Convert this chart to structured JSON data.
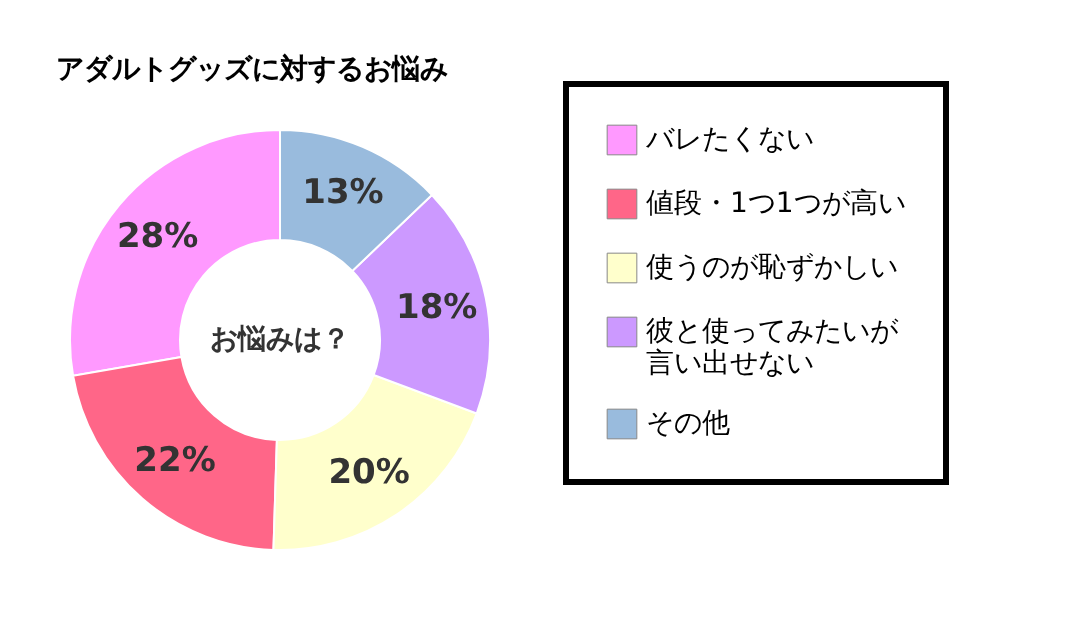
{
  "chart_data": {
    "type": "donut",
    "title": "アダルトグッズに対するお悩み",
    "categories": [
      "バレたくない",
      "値段・1つ1つが高い",
      "使うのが恥ずかしい",
      "彼と使ってみたいが言い出せない",
      "その他"
    ],
    "values": [
      28,
      22,
      20,
      18,
      13
    ],
    "colors": [
      "#ff99ff",
      "#ff6688",
      "#ffffcc",
      "#cc99ff",
      "#99bbdd"
    ],
    "value_labels": [
      "28%",
      "22%",
      "20%",
      "18%",
      "13%"
    ],
    "legend": "right",
    "annotations": [
      "お悩みは？"
    ]
  }
}
